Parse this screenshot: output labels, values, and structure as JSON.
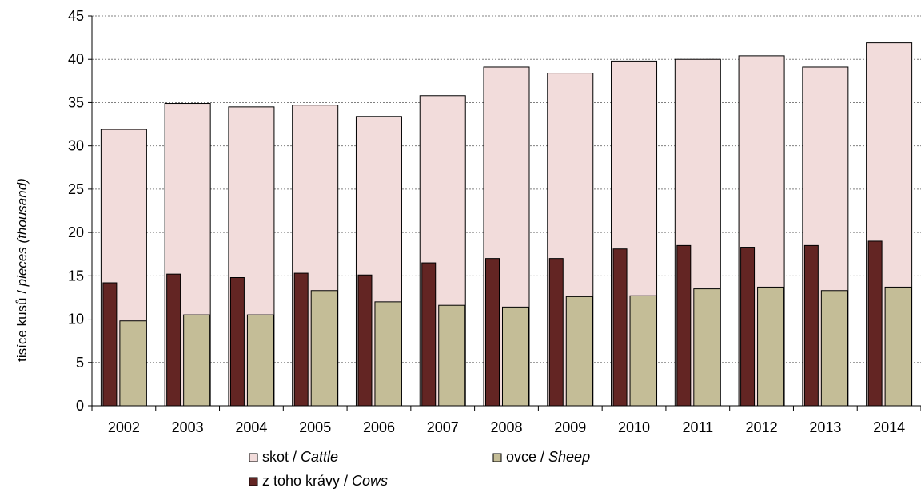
{
  "chart_data": {
    "type": "bar",
    "title": "",
    "xlabel": "",
    "ylabel": {
      "plain": "tisíce kusů / ",
      "italic": "pieces (thousand)"
    },
    "ylim": [
      0,
      45
    ],
    "yticks": [
      0,
      5,
      10,
      15,
      20,
      25,
      30,
      35,
      40,
      45
    ],
    "grid": true,
    "legend_position": "bottom",
    "categories": [
      "2002",
      "2003",
      "2004",
      "2005",
      "2006",
      "2007",
      "2008",
      "2009",
      "2010",
      "2011",
      "2012",
      "2013",
      "2014"
    ],
    "series": [
      {
        "name_plain": "skot / ",
        "name_italic": "Cattle",
        "color": "#f2dcdb",
        "values": [
          31.9,
          34.9,
          34.5,
          34.7,
          33.4,
          35.8,
          39.1,
          38.4,
          39.8,
          40.0,
          40.4,
          39.1,
          41.9
        ]
      },
      {
        "name_plain": "z toho krávy / ",
        "name_italic": "Cows",
        "color": "#632523",
        "values": [
          14.2,
          15.2,
          14.8,
          15.3,
          15.1,
          16.5,
          17.0,
          17.0,
          18.1,
          18.5,
          18.3,
          18.5,
          19.0
        ]
      },
      {
        "name_plain": "ovce / ",
        "name_italic": "Sheep",
        "color": "#c4bd97",
        "values": [
          9.8,
          10.5,
          10.5,
          13.3,
          12.0,
          11.6,
          11.4,
          12.6,
          12.7,
          13.5,
          13.7,
          13.3,
          13.7
        ]
      }
    ]
  }
}
